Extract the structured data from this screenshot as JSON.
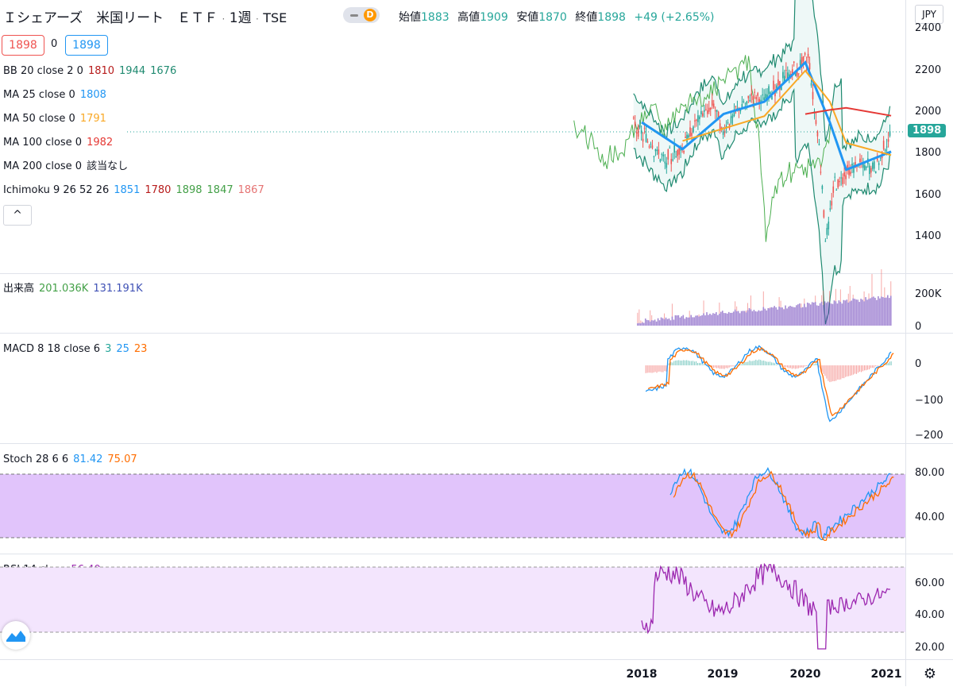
{
  "header": {
    "symbol": "Ｉシェアーズ　米国リート　ＥＴＦ",
    "interval": "1週",
    "exchange": "TSE",
    "dot": "·",
    "interval_toggle": "D",
    "open_label": "始値",
    "open": "1883",
    "high_label": "高値",
    "high": "1909",
    "low_label": "安値",
    "low": "1870",
    "close_label": "終値",
    "close": "1898",
    "change": "+49 (+2.65%)",
    "currency": "JPY"
  },
  "quote": {
    "bid": "1898",
    "spread": "0",
    "ask": "1898"
  },
  "indicators": {
    "bb": {
      "label": "BB 20 close 2 0",
      "v1": "1810",
      "v2": "1944",
      "v3": "1676"
    },
    "ma25": {
      "label": "MA 25 close 0",
      "v": "1808"
    },
    "ma50": {
      "label": "MA 50 close 0",
      "v": "1791"
    },
    "ma100": {
      "label": "MA 100 close 0",
      "v": "1982"
    },
    "ma200": {
      "label": "MA 200 close 0",
      "v": "該当なし"
    },
    "ichimoku": {
      "label": "Ichimoku 9 26 52 26",
      "v1": "1851",
      "v2": "1780",
      "v3": "1898",
      "v4": "1847",
      "v5": "1867"
    },
    "collapse": "^"
  },
  "volume": {
    "label": "出来高",
    "v1": "201.036K",
    "v2": "131.191K"
  },
  "macd": {
    "label": "MACD 8 18 close 6",
    "v1": "3",
    "v2": "25",
    "v3": "23"
  },
  "stoch": {
    "label": "Stoch 28 6 6",
    "v1": "81.42",
    "v2": "75.07"
  },
  "rsi": {
    "label": "RSI 14 close",
    "v": "56.40"
  },
  "price_axis": {
    "ticks": [
      "2400",
      "2200",
      "2000",
      "1800",
      "1600",
      "1400"
    ],
    "last": "1898"
  },
  "volume_axis": {
    "ticks": [
      "200K",
      "0"
    ]
  },
  "macd_axis": {
    "ticks": [
      "0",
      "−100",
      "−200"
    ]
  },
  "stoch_axis": {
    "ticks": [
      "80.00",
      "40.00"
    ]
  },
  "rsi_axis": {
    "ticks": [
      "60.00",
      "40.00",
      "20.00"
    ]
  },
  "time_axis": {
    "ticks": [
      "2018",
      "2019",
      "2020",
      "2021"
    ]
  },
  "colors": {
    "up": "#26a69a",
    "down": "#ef5350",
    "ma25": "#2196f3",
    "ma50": "#f9a825",
    "ma100": "#e53935",
    "bb": "#1f8a70",
    "ichimoku_lag": "#4caf50",
    "stoch_bg": "#e1c4fb",
    "rsi_bg": "#f3e5fd",
    "rsi_line": "#9c27b0"
  },
  "chart_data": {
    "type": "line",
    "title": "",
    "x": [
      "2018",
      "2018.5",
      "2019",
      "2019.5",
      "2020",
      "2020.3",
      "2020.5",
      "2021"
    ],
    "series": [
      {
        "name": "Price",
        "values": [
          1900,
          1780,
          2000,
          2050,
          2250,
          1600,
          1750,
          1898
        ]
      },
      {
        "name": "MA 25",
        "values": [
          1950,
          1820,
          1990,
          2050,
          2240,
          1950,
          1720,
          1808
        ]
      },
      {
        "name": "MA 50",
        "values": [
          null,
          1860,
          1920,
          1980,
          2200,
          2050,
          1850,
          1791
        ]
      },
      {
        "name": "MA 100",
        "values": [
          null,
          null,
          null,
          null,
          1990,
          2010,
          2020,
          1982
        ]
      }
    ],
    "ylim": [
      1250,
      2450
    ]
  }
}
